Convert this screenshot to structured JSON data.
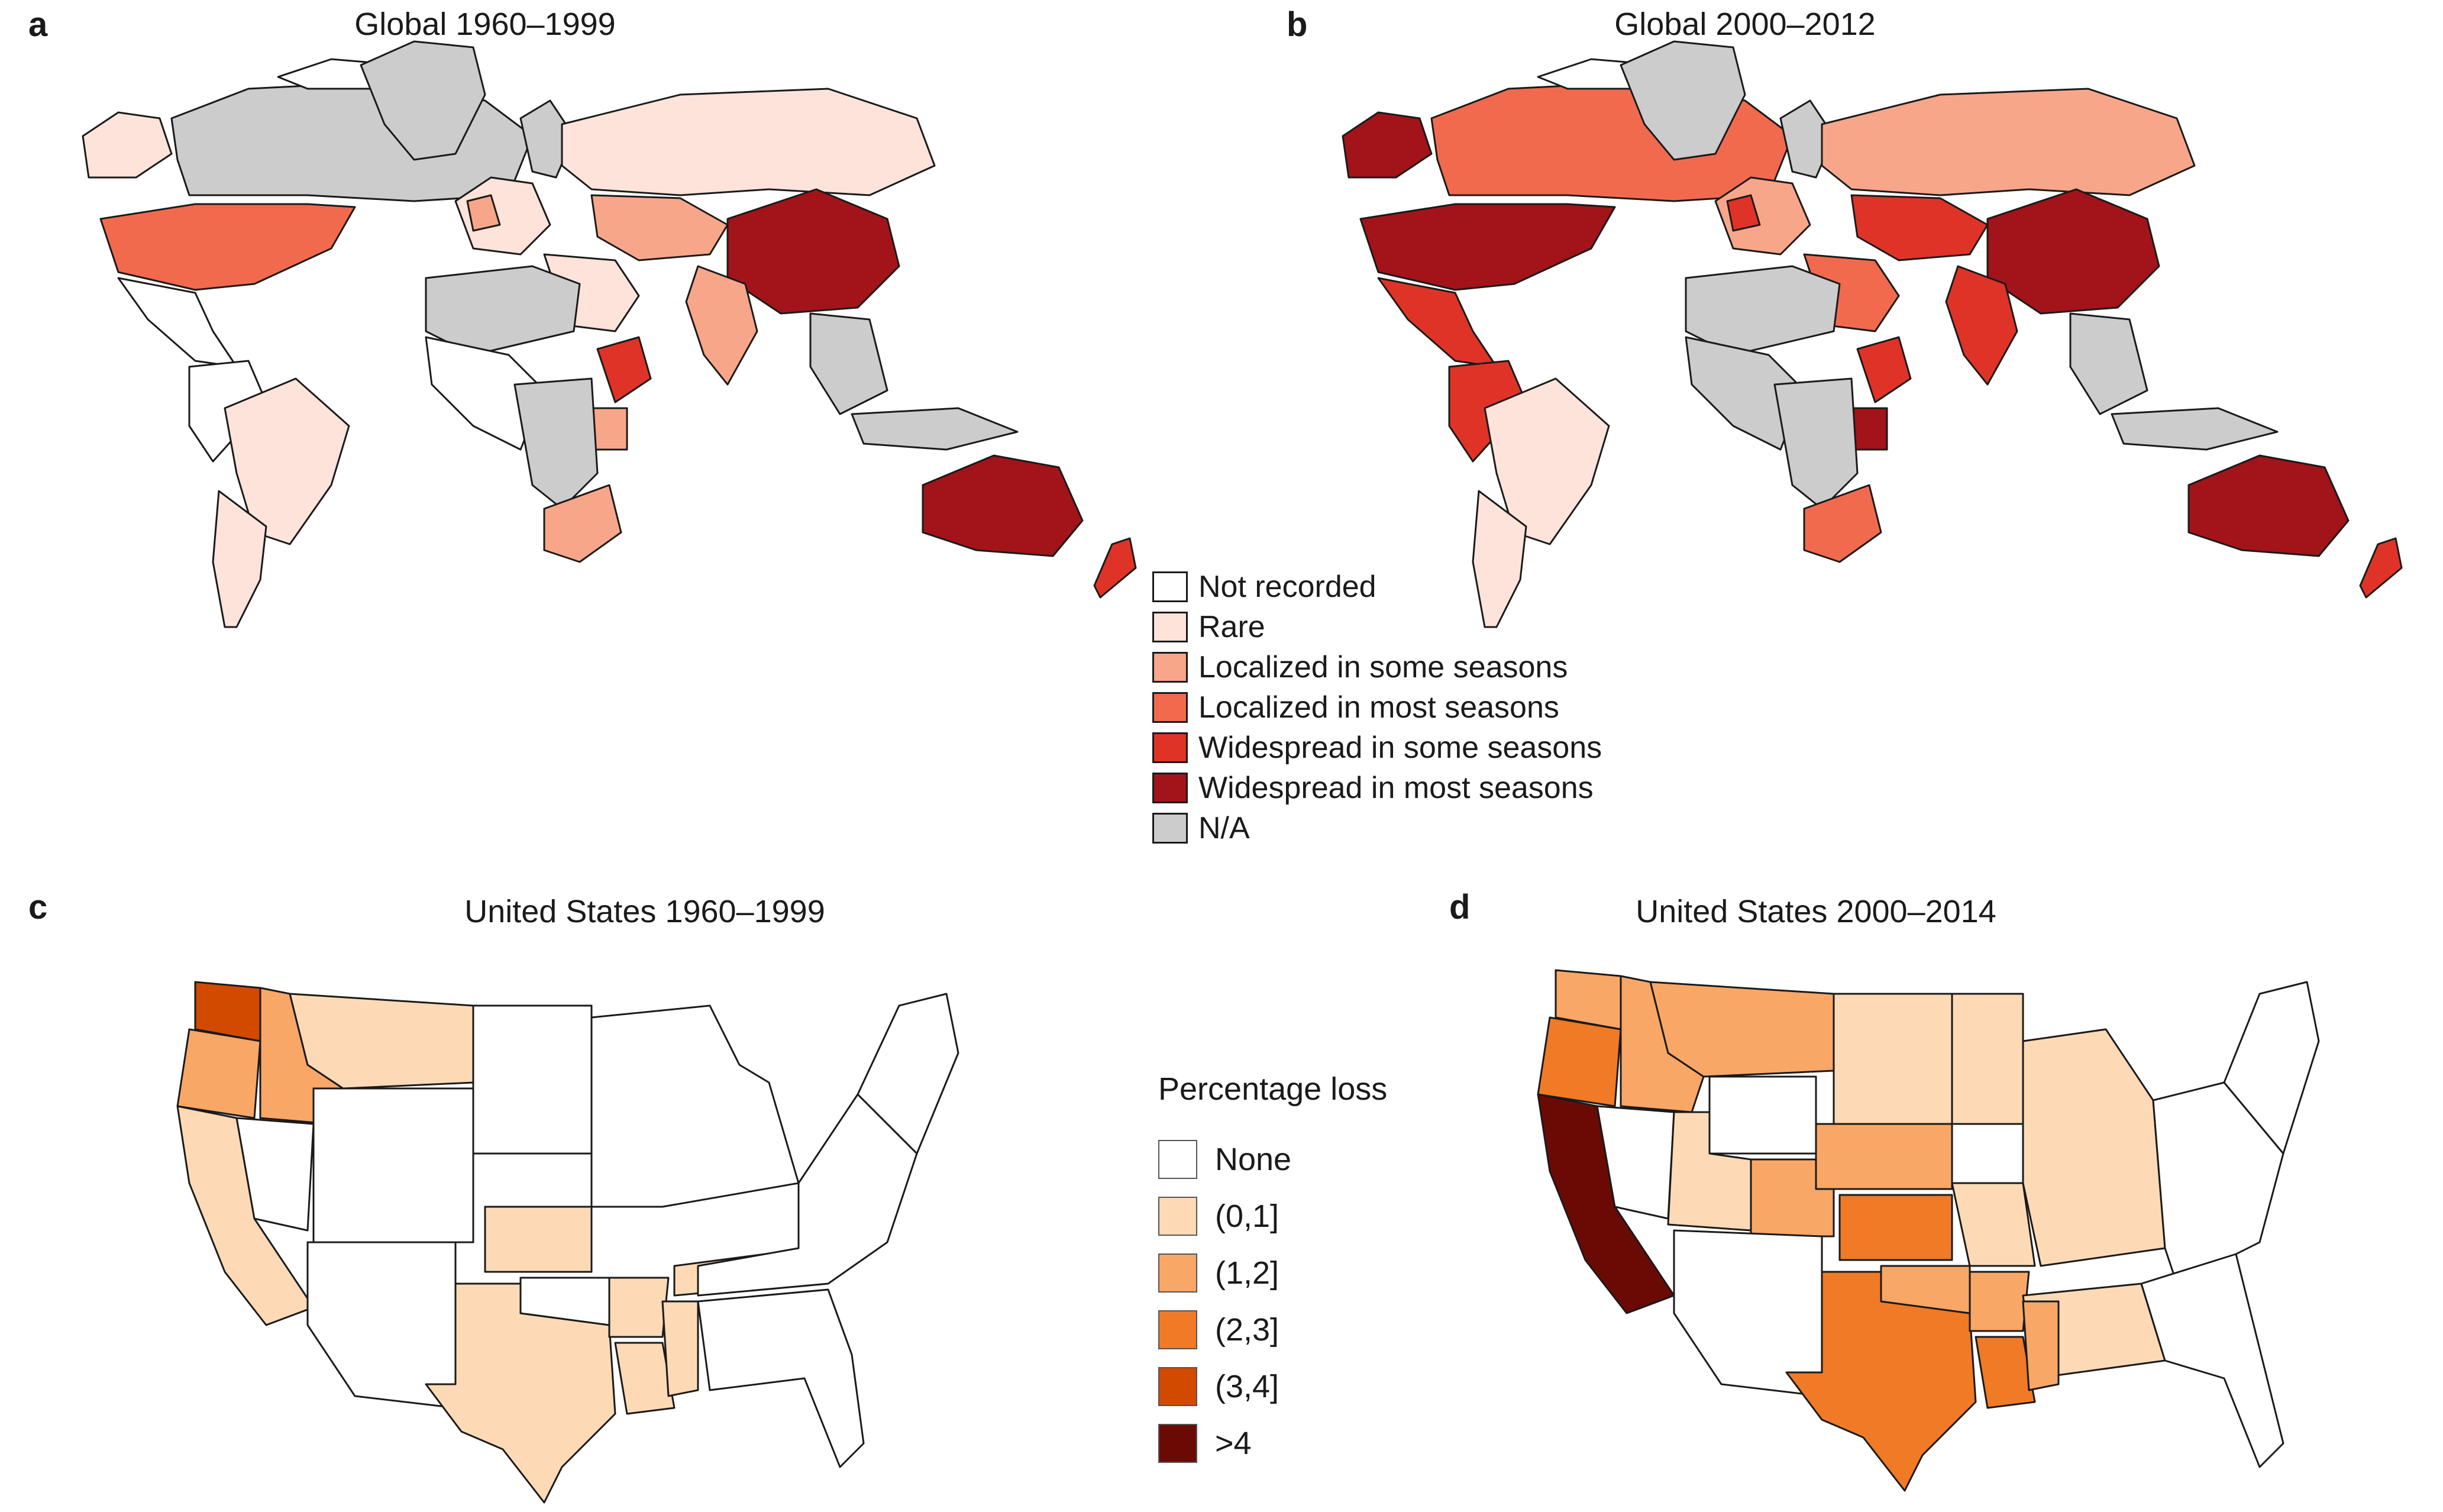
{
  "panels": {
    "a": {
      "letter": "a",
      "title": "Global 1960–1999"
    },
    "b": {
      "letter": "b",
      "title": "Global 2000–2012"
    },
    "c": {
      "letter": "c",
      "title": "United States 1960–1999"
    },
    "d": {
      "letter": "d",
      "title": "United States 2000–2014"
    }
  },
  "colors": {
    "not_recorded": "#ffffff",
    "rare": "#fde3da",
    "loc_some": "#f8a68a",
    "loc_most": "#f26a4e",
    "wide_some": "#e03327",
    "wide_most": "#a3131a",
    "na": "#cccccc",
    "us_none": "#ffffff",
    "us_0_1": "#fddab5",
    "us_1_2": "#f9a766",
    "us_2_3": "#f07a26",
    "us_3_4": "#d14a00",
    "us_gt4": "#6b0a05"
  },
  "global_legend": [
    {
      "label": "Not recorded",
      "color": "#ffffff"
    },
    {
      "label": "Rare",
      "color": "#fde3da"
    },
    {
      "label": "Localized in some seasons",
      "color": "#f8a68a"
    },
    {
      "label": "Localized in most seasons",
      "color": "#f26a4e"
    },
    {
      "label": "Widespread in some seasons",
      "color": "#e03327"
    },
    {
      "label": "Widespread in most seasons",
      "color": "#a3131a"
    },
    {
      "label": "N/A",
      "color": "#cccccc"
    }
  ],
  "us_legend": {
    "title": "Percentage loss",
    "items": [
      {
        "label": "None",
        "color": "#ffffff"
      },
      {
        "label": "(0,1]",
        "color": "#fddab5"
      },
      {
        "label": "(1,2]",
        "color": "#f9a766"
      },
      {
        "label": "(2,3]",
        "color": "#f07a26"
      },
      {
        "label": "(3,4]",
        "color": "#d14a00"
      },
      {
        "label": ">4",
        "color": "#6b0a05"
      }
    ]
  }
}
